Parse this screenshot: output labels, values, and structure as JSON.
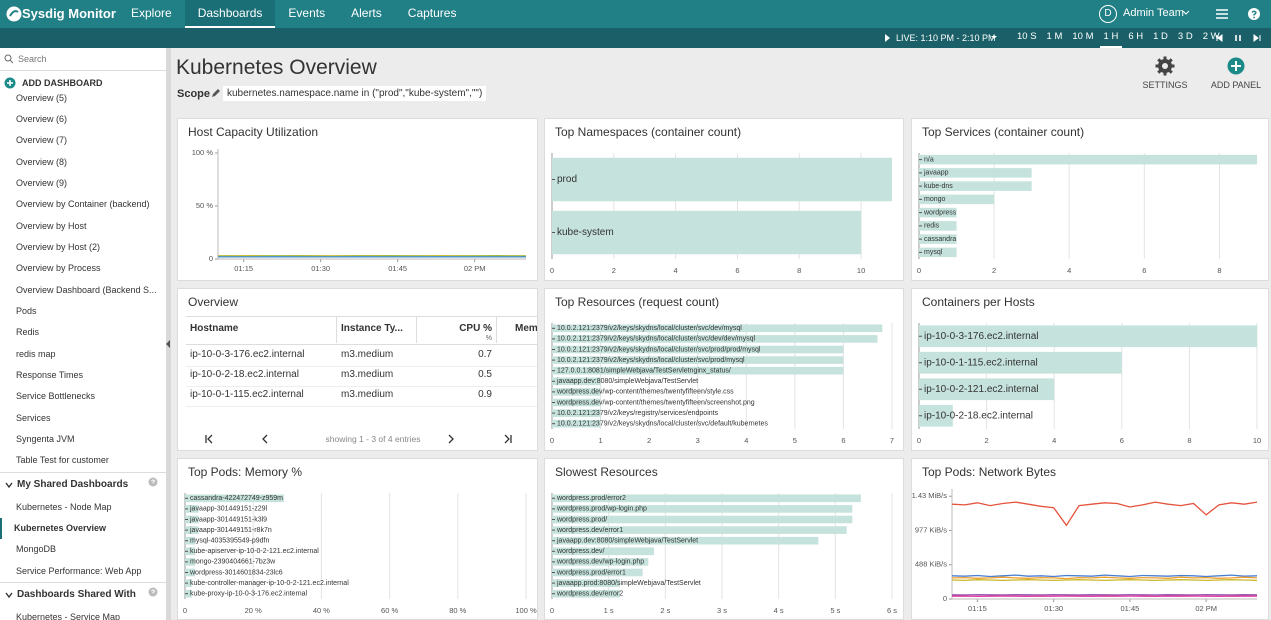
{
  "nav": {
    "brand": "Sysdig Monitor",
    "items": [
      "Explore",
      "Dashboards",
      "Events",
      "Alerts",
      "Captures"
    ],
    "active": 1,
    "avatar": "D",
    "team": "Admin Team"
  },
  "timebar": {
    "live": "LIVE: 1:10 PM - 2:10 PM",
    "ranges": [
      "10 S",
      "1 M",
      "10 M",
      "1 H",
      "6 H",
      "1 D",
      "3 D",
      "2 W"
    ],
    "active": 3
  },
  "sidebar": {
    "search": "Search",
    "add": "ADD DASHBOARD",
    "items": [
      "Overview (5)",
      "Overview (6)",
      "Overview (7)",
      "Overview (8)",
      "Overview (9)",
      "Overview by Container (backend)",
      "Overview by Host",
      "Overview by Host (2)",
      "Overview by Process",
      "Overview Dashboard (Backend S...",
      "Pods",
      "Redis",
      "redis map",
      "Response Times",
      "Service Bottlenecks",
      "Services",
      "Syngenta JVM",
      "Table Test for customer"
    ],
    "sections": [
      {
        "title": "My Shared Dashboards",
        "items": [
          "Kubernetes - Node Map",
          "Kubernetes Overview",
          "MongoDB",
          "Service Performance: Web App"
        ],
        "active": 1
      },
      {
        "title": "Dashboards Shared With",
        "items": [
          "Kubernetes - Service Map"
        ]
      }
    ]
  },
  "header": {
    "title": "Kubernetes Overview",
    "scope_label": "Scope",
    "scope": "kubernetes.namespace.name in (\"prod\",\"kube-system\",\"\")",
    "settings": "SETTINGS",
    "add_panel": "ADD PANEL"
  },
  "panels": [
    {
      "type": "line",
      "title": "Host Capacity Utilization",
      "ylim": [
        0,
        100
      ],
      "yticks": [
        0,
        {
          "value": 50,
          "label": "50 %"
        },
        {
          "value": 100,
          "label": "100 %"
        }
      ],
      "xlim": [
        0,
        60
      ],
      "xticks": [
        {
          "value": 5,
          "label": "01:15"
        },
        {
          "value": 20,
          "label": "01:30"
        },
        {
          "value": 35,
          "label": "01:45"
        },
        {
          "value": 50,
          "label": "02 PM"
        }
      ],
      "series": [
        {
          "color": "#e3c02c",
          "values": [
            3,
            3.2,
            3,
            3.1,
            3,
            3.2,
            3.1,
            3,
            3.2,
            3,
            3.1,
            3
          ]
        },
        {
          "color": "#6ab04c",
          "values": [
            2.5,
            2.4,
            2.6,
            2.5,
            2.4,
            2.5,
            2.6,
            2.5,
            2.4,
            2.5,
            2.6,
            2.5
          ]
        },
        {
          "color": "#4a90d9",
          "values": [
            2,
            2,
            2.1,
            2,
            2,
            2.1,
            2,
            2,
            2.1,
            2,
            2,
            2
          ]
        }
      ]
    },
    {
      "type": "bar",
      "title": "Top Namespaces (container count)",
      "color": "#c5e2dc",
      "categories": [
        "prod",
        "kube-system"
      ],
      "values": [
        11,
        10
      ],
      "xlim": [
        0,
        11
      ],
      "xticks": [
        0,
        2,
        4,
        6,
        8,
        10
      ]
    },
    {
      "type": "bar",
      "title": "Top Services (container count)",
      "color": "#c5e2dc",
      "categories": [
        "n/a",
        "javaapp",
        "kube-dns",
        "mongo",
        "wordpress",
        "redis",
        "cassandra",
        "mysql"
      ],
      "values": [
        9,
        3,
        3,
        2,
        1,
        1,
        1,
        1
      ],
      "xlim": [
        0,
        9
      ],
      "xticks": [
        0,
        2,
        4,
        6,
        8
      ]
    },
    {
      "type": "table",
      "title": "Overview",
      "columns": [
        {
          "label": "Hostname"
        },
        {
          "label": "Instance Ty..."
        },
        {
          "label": "CPU %",
          "unit": "%"
        },
        {
          "label": "Mem"
        }
      ],
      "rows": [
        [
          "ip-10-0-3-176.ec2.internal",
          "m3.medium",
          0.7
        ],
        [
          "ip-10-0-2-18.ec2.internal",
          "m3.medium",
          0.5
        ],
        [
          "ip-10-0-1-115.ec2.internal",
          "m3.medium",
          0.9
        ]
      ],
      "pager": "showing 1 - 3 of 4 entries"
    },
    {
      "type": "bar",
      "title": "Top Resources (request count)",
      "color": "#c5e2dc",
      "categories": [
        "10.0.2.121:2379/v2/keys/skydns/local/cluster/svc/dev/mysql",
        "10.0.2.121:2379/v2/keys/skydns/local/cluster/svc/dev/dev/mysql",
        "10.0.2.121:2379/v2/keys/skydns/local/cluster/svc/prod/prod/mysql",
        "10.0.2.121:2379/v2/keys/skydns/local/cluster/svc/prod/mysql",
        "127.0.0.1:8081/simpleWebjava/TestServletnginx_status/",
        "javaapp.dev:8080/simpleWebjava/TestServlet",
        "wordpress.dev/wp-content/themes/twentyfifteen/style.css",
        "wordpress.dev/wp-content/themes/twentyfifteen/screenshot.png",
        "10.0.2.121:2379/v2/keys/registry/services/endpoints",
        "10.0.2.121:2379/v2/keys/skydns/local/cluster/svc/default/kubernetes"
      ],
      "values": [
        6.8,
        6.7,
        6,
        6,
        6,
        1,
        1,
        1,
        1,
        1
      ],
      "xlim": [
        0,
        7
      ],
      "xticks": [
        0,
        1,
        2,
        3,
        4,
        5,
        6,
        7
      ]
    },
    {
      "type": "bar",
      "title": "Containers per Hosts",
      "color": "#c5e2dc",
      "categories": [
        "ip-10-0-3-176.ec2.internal",
        "ip-10-0-1-115.ec2.internal",
        "ip-10-0-2-121.ec2.internal",
        "ip-10-0-2-18.ec2.internal"
      ],
      "values": [
        10,
        6,
        4,
        1
      ],
      "xlim": [
        0,
        10
      ],
      "xticks": [
        0,
        2,
        4,
        6,
        8,
        10
      ]
    },
    {
      "type": "bar",
      "title": "Top Pods: Memory %",
      "color": "#c5e2dc",
      "categories": [
        "cassandra-422472749-z959m",
        "javaapp-301449151-z29l",
        "javaapp-301449151-k3l9",
        "javaapp-301449151-r8k7n",
        "mysql-4035395549-p9dfn",
        "kube-apiserver-ip-10-0-2-121.ec2.internal",
        "mongo-2390404661-7bz3w",
        "wordpress-3014601834-23lc6",
        "kube-controller-manager-ip-10-0-2-121.ec2.internal",
        "kube-proxy-ip-10-0-3-176.ec2.internal"
      ],
      "values": [
        29,
        4,
        4,
        4,
        3,
        3,
        3,
        3,
        2,
        2
      ],
      "xlim": [
        0,
        100
      ],
      "xticks": [
        0,
        {
          "value": 20,
          "label": "20 %"
        },
        {
          "value": 40,
          "label": "40 %"
        },
        {
          "value": 60,
          "label": "60 %"
        },
        {
          "value": 80,
          "label": "80 %"
        },
        {
          "value": 100,
          "label": "100 %"
        }
      ]
    },
    {
      "type": "bar",
      "title": "Slowest Resources",
      "color": "#c5e2dc",
      "categories": [
        "wordpress.prod/error2",
        "wordpress.prod/wp-login.php",
        "wordpress.prod/",
        "wordpress.dev/error1",
        "javaapp.dev:8080/simpleWebjava/TestServlet",
        "wordpress.dev/",
        "wordpress.dev/wp-login.php",
        "wordpress.prod/error1",
        "javaapp.prod:8080/simpleWebjava/TestServlet",
        "wordpress.dev/error2"
      ],
      "values": [
        5.45,
        5.3,
        5.3,
        5.2,
        4.7,
        1.8,
        1.7,
        1.6,
        1.2,
        1.2
      ],
      "xlim": [
        0,
        6
      ],
      "xticks": [
        0,
        {
          "value": 1,
          "label": "1 s"
        },
        {
          "value": 2,
          "label": "2 s"
        },
        {
          "value": 3,
          "label": "3 s"
        },
        {
          "value": 4,
          "label": "4 s"
        },
        {
          "value": 5,
          "label": "5 s"
        },
        {
          "value": 6,
          "label": "6 s"
        }
      ]
    },
    {
      "type": "line",
      "title": "Top Pods: Network Bytes",
      "ylim": [
        0,
        1510
      ],
      "yticks": [
        0,
        {
          "value": 488,
          "label": "488 KiB/s"
        },
        {
          "value": 977,
          "label": "977 KiB/s"
        },
        {
          "value": 1464,
          "label": "1.43 MiB/s"
        }
      ],
      "xlim": [
        0,
        60
      ],
      "xticks": [
        {
          "value": 5,
          "label": "01:15"
        },
        {
          "value": 20,
          "label": "01:30"
        },
        {
          "value": 35,
          "label": "01:45"
        },
        {
          "value": 50,
          "label": "02 PM"
        }
      ],
      "series": [
        {
          "color": "#e5533d",
          "values": [
            1350,
            1340,
            1370,
            1330,
            1360,
            1380,
            1350,
            1320,
            1300,
            1050,
            1330,
            1350,
            1370,
            1360,
            1310,
            1340,
            1380,
            1350,
            1330,
            1360,
            1200,
            1340,
            1370,
            1350,
            1380
          ]
        },
        {
          "color": "#4a7fd0",
          "values": [
            330,
            325,
            335,
            320,
            330,
            340,
            325,
            330,
            320,
            335,
            330,
            325,
            340,
            330,
            320,
            335,
            330,
            325,
            335,
            330,
            320,
            330,
            340,
            325,
            330
          ]
        },
        {
          "color": "#f0a030",
          "values": [
            300,
            305,
            295,
            300,
            310,
            300,
            295,
            305,
            300,
            290,
            305,
            300,
            310,
            300,
            295,
            305,
            300,
            295,
            310,
            300,
            305,
            295,
            300,
            310,
            300
          ]
        },
        {
          "color": "#c9b82a",
          "values": [
            270,
            265,
            275,
            270,
            265,
            270,
            275,
            270,
            265,
            270,
            275,
            270,
            265,
            270,
            275,
            270,
            265,
            270,
            275,
            270,
            265,
            270,
            275,
            270,
            265
          ]
        },
        {
          "color": "#9b59b6",
          "values": [
            60,
            58,
            62,
            60,
            59,
            61,
            60,
            58,
            62,
            60,
            59,
            61,
            60,
            58,
            62,
            60,
            59,
            61,
            60,
            58,
            62,
            60,
            59,
            61,
            60
          ]
        },
        {
          "color": "#e040a0",
          "values": [
            40,
            41,
            39,
            40,
            42,
            40,
            39,
            41,
            40,
            42,
            40,
            39,
            41,
            40,
            42,
            40,
            39,
            41,
            40,
            42,
            40,
            39,
            41,
            40,
            42
          ]
        }
      ]
    }
  ]
}
